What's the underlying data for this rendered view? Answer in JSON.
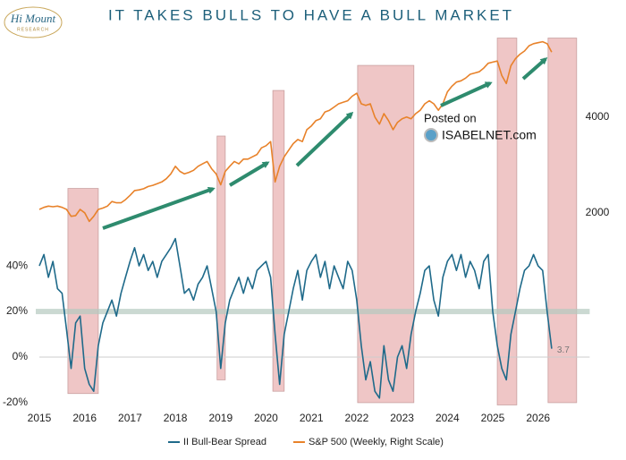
{
  "chart_data": {
    "type": "line",
    "title": "IT TAKES BULLS TO HAVE A BULL MARKET",
    "logo": {
      "name": "Hi Mount",
      "subtitle": "RESEARCH"
    },
    "watermark": {
      "line1": "Posted on",
      "line2": "ISABELNET.com"
    },
    "x": [
      2015.0,
      2015.1,
      2015.2,
      2015.3,
      2015.4,
      2015.5,
      2015.6,
      2015.7,
      2015.8,
      2015.9,
      2016.0,
      2016.1,
      2016.2,
      2016.3,
      2016.4,
      2016.5,
      2016.6,
      2016.7,
      2016.8,
      2016.9,
      2017.0,
      2017.1,
      2017.2,
      2017.3,
      2017.4,
      2017.5,
      2017.6,
      2017.7,
      2017.8,
      2017.9,
      2018.0,
      2018.1,
      2018.2,
      2018.3,
      2018.4,
      2018.5,
      2018.6,
      2018.7,
      2018.8,
      2018.9,
      2019.0,
      2019.1,
      2019.2,
      2019.3,
      2019.4,
      2019.5,
      2019.6,
      2019.7,
      2019.8,
      2019.9,
      2020.0,
      2020.1,
      2020.2,
      2020.3,
      2020.4,
      2020.5,
      2020.6,
      2020.7,
      2020.8,
      2020.9,
      2021.0,
      2021.1,
      2021.2,
      2021.3,
      2021.4,
      2021.5,
      2021.6,
      2021.7,
      2021.8,
      2021.9,
      2022.0,
      2022.1,
      2022.2,
      2022.3,
      2022.4,
      2022.5,
      2022.6,
      2022.7,
      2022.8,
      2022.9,
      2023.0,
      2023.1,
      2023.2,
      2023.3,
      2023.4,
      2023.5,
      2023.6,
      2023.7,
      2023.8,
      2023.9,
      2024.0,
      2024.1,
      2024.2,
      2024.3,
      2024.4,
      2024.5,
      2024.6,
      2024.7,
      2024.8,
      2024.9,
      2025.0,
      2025.1,
      2025.2,
      2025.3,
      2025.4,
      2025.5,
      2025.6,
      2025.7,
      2025.8,
      2025.9,
      2026.0,
      2026.1,
      2026.2,
      2026.3
    ],
    "series": [
      {
        "name": "II Bull-Bear Spread",
        "color": "#1f6a8a",
        "axis": "y",
        "values": [
          40,
          45,
          35,
          42,
          30,
          28,
          12,
          -5,
          15,
          18,
          -5,
          -12,
          -15,
          5,
          15,
          20,
          25,
          18,
          28,
          35,
          42,
          48,
          40,
          45,
          38,
          42,
          35,
          42,
          45,
          48,
          52,
          40,
          28,
          30,
          25,
          32,
          35,
          40,
          30,
          20,
          -5,
          15,
          25,
          30,
          35,
          28,
          35,
          30,
          38,
          40,
          42,
          35,
          10,
          -12,
          10,
          20,
          30,
          38,
          25,
          38,
          42,
          45,
          35,
          42,
          30,
          40,
          35,
          30,
          42,
          38,
          25,
          5,
          -10,
          -2,
          -15,
          -18,
          5,
          -10,
          -15,
          0,
          5,
          -5,
          10,
          20,
          28,
          38,
          40,
          25,
          18,
          35,
          42,
          45,
          38,
          45,
          35,
          42,
          38,
          30,
          42,
          45,
          20,
          5,
          -5,
          -10,
          10,
          20,
          30,
          38,
          40,
          45,
          40,
          38,
          20,
          3.7
        ]
      },
      {
        "name": "S&P 500 (Weekly, Right Scale)",
        "color": "#e8822a",
        "axis": "y2",
        "values": [
          2050,
          2080,
          2100,
          2090,
          2100,
          2080,
          2050,
          1950,
          1960,
          2050,
          2000,
          1880,
          1950,
          2050,
          2070,
          2100,
          2170,
          2150,
          2150,
          2200,
          2270,
          2350,
          2360,
          2380,
          2420,
          2440,
          2470,
          2500,
          2560,
          2650,
          2800,
          2700,
          2650,
          2680,
          2720,
          2800,
          2850,
          2900,
          2750,
          2650,
          2450,
          2700,
          2800,
          2900,
          2850,
          2950,
          2950,
          3000,
          3050,
          3200,
          3250,
          3350,
          2500,
          2800,
          3000,
          3150,
          3300,
          3400,
          3350,
          3650,
          3750,
          3900,
          3950,
          4150,
          4200,
          4300,
          4400,
          4450,
          4500,
          4650,
          4750,
          4400,
          4350,
          4400,
          4000,
          3800,
          4100,
          3900,
          3650,
          3850,
          3950,
          4000,
          3950,
          4100,
          4200,
          4400,
          4500,
          4400,
          4200,
          4400,
          4800,
          5000,
          5150,
          5200,
          5300,
          5450,
          5500,
          5550,
          5700,
          5900,
          5950,
          6000,
          5400,
          5100,
          5800,
          6100,
          6300,
          6450,
          6700,
          6800,
          6850,
          6900,
          6800,
          6400
        ]
      }
    ],
    "last_value_label": "3.7",
    "xlim": [
      2015.0,
      2026.98
    ],
    "xticks": [
      2015,
      2016,
      2017,
      2018,
      2019,
      2020,
      2021,
      2022,
      2023,
      2024,
      2025,
      2026
    ],
    "ylim": [
      -22,
      141
    ],
    "yticks": [
      {
        "value": -20,
        "label": "-20%"
      },
      {
        "value": 0,
        "label": "0%"
      },
      {
        "value": 20,
        "label": "20%"
      },
      {
        "value": 40,
        "label": "40%"
      }
    ],
    "y2lim": [
      490,
      7200
    ],
    "y2scale": "log",
    "y2ticks": [
      2000,
      4000
    ],
    "reference_band": 20,
    "shaded_periods": [
      {
        "start": 2015.63,
        "end": 2016.3,
        "top": 74,
        "bottom": -16
      },
      {
        "start": 2018.92,
        "end": 2019.1,
        "top": 97,
        "bottom": -10
      },
      {
        "start": 2020.15,
        "end": 2020.4,
        "top": 117,
        "bottom": -15
      },
      {
        "start": 2022.02,
        "end": 2023.26,
        "top": 128,
        "bottom": -20
      },
      {
        "start": 2025.1,
        "end": 2025.53,
        "top": 140,
        "bottom": -21
      },
      {
        "start": 2026.22,
        "end": 2026.85,
        "top": 140,
        "bottom": -20
      }
    ],
    "shade_color": "#e9b3b3",
    "grid": false,
    "legend": "bottom"
  }
}
